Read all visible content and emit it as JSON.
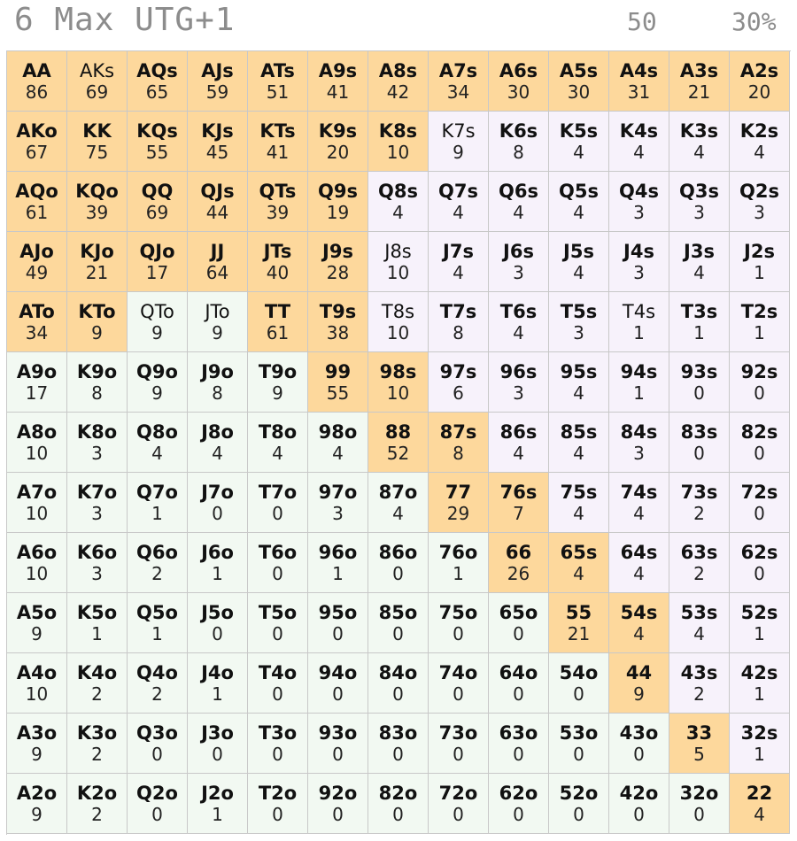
{
  "header": {
    "title": "6 Max UTG+1",
    "stat_left": "50",
    "stat_right": "30%"
  },
  "colors": {
    "open": "#fdd89c",
    "fold_suited": "#f7f2fb",
    "fold_offsuit": "#f2f9f2",
    "grid_line": "#c8c8c8"
  },
  "grid": {
    "rows": [
      [
        {
          "hand": "AA",
          "freq": "86"
        },
        {
          "hand": "AKs",
          "freq": "69"
        },
        {
          "hand": "AQs",
          "freq": "65"
        },
        {
          "hand": "AJs",
          "freq": "59"
        },
        {
          "hand": "ATs",
          "freq": "51"
        },
        {
          "hand": "A9s",
          "freq": "41"
        },
        {
          "hand": "A8s",
          "freq": "42"
        },
        {
          "hand": "A7s",
          "freq": "34"
        },
        {
          "hand": "A6s",
          "freq": "30"
        },
        {
          "hand": "A5s",
          "freq": "30"
        },
        {
          "hand": "A4s",
          "freq": "31"
        },
        {
          "hand": "A3s",
          "freq": "21"
        },
        {
          "hand": "A2s",
          "freq": "20"
        }
      ],
      [
        {
          "hand": "AKo",
          "freq": "67"
        },
        {
          "hand": "KK",
          "freq": "75"
        },
        {
          "hand": "KQs",
          "freq": "55"
        },
        {
          "hand": "KJs",
          "freq": "45"
        },
        {
          "hand": "KTs",
          "freq": "41"
        },
        {
          "hand": "K9s",
          "freq": "20"
        },
        {
          "hand": "K8s",
          "freq": "10"
        },
        {
          "hand": "K7s",
          "freq": "9"
        },
        {
          "hand": "K6s",
          "freq": "8"
        },
        {
          "hand": "K5s",
          "freq": "4"
        },
        {
          "hand": "K4s",
          "freq": "4"
        },
        {
          "hand": "K3s",
          "freq": "4"
        },
        {
          "hand": "K2s",
          "freq": "4"
        }
      ],
      [
        {
          "hand": "AQo",
          "freq": "61"
        },
        {
          "hand": "KQo",
          "freq": "39"
        },
        {
          "hand": "QQ",
          "freq": "69"
        },
        {
          "hand": "QJs",
          "freq": "44"
        },
        {
          "hand": "QTs",
          "freq": "39"
        },
        {
          "hand": "Q9s",
          "freq": "19"
        },
        {
          "hand": "Q8s",
          "freq": "4"
        },
        {
          "hand": "Q7s",
          "freq": "4"
        },
        {
          "hand": "Q6s",
          "freq": "4"
        },
        {
          "hand": "Q5s",
          "freq": "4"
        },
        {
          "hand": "Q4s",
          "freq": "3"
        },
        {
          "hand": "Q3s",
          "freq": "3"
        },
        {
          "hand": "Q2s",
          "freq": "3"
        }
      ],
      [
        {
          "hand": "AJo",
          "freq": "49"
        },
        {
          "hand": "KJo",
          "freq": "21"
        },
        {
          "hand": "QJo",
          "freq": "17"
        },
        {
          "hand": "JJ",
          "freq": "64"
        },
        {
          "hand": "JTs",
          "freq": "40"
        },
        {
          "hand": "J9s",
          "freq": "28"
        },
        {
          "hand": "J8s",
          "freq": "10"
        },
        {
          "hand": "J7s",
          "freq": "4"
        },
        {
          "hand": "J6s",
          "freq": "3"
        },
        {
          "hand": "J5s",
          "freq": "4"
        },
        {
          "hand": "J4s",
          "freq": "3"
        },
        {
          "hand": "J3s",
          "freq": "4"
        },
        {
          "hand": "J2s",
          "freq": "1"
        }
      ],
      [
        {
          "hand": "ATo",
          "freq": "34"
        },
        {
          "hand": "KTo",
          "freq": "9"
        },
        {
          "hand": "QTo",
          "freq": "9"
        },
        {
          "hand": "JTo",
          "freq": "9"
        },
        {
          "hand": "TT",
          "freq": "61"
        },
        {
          "hand": "T9s",
          "freq": "38"
        },
        {
          "hand": "T8s",
          "freq": "10"
        },
        {
          "hand": "T7s",
          "freq": "8"
        },
        {
          "hand": "T6s",
          "freq": "4"
        },
        {
          "hand": "T5s",
          "freq": "3"
        },
        {
          "hand": "T4s",
          "freq": "1"
        },
        {
          "hand": "T3s",
          "freq": "1"
        },
        {
          "hand": "T2s",
          "freq": "1"
        }
      ],
      [
        {
          "hand": "A9o",
          "freq": "17"
        },
        {
          "hand": "K9o",
          "freq": "8"
        },
        {
          "hand": "Q9o",
          "freq": "9"
        },
        {
          "hand": "J9o",
          "freq": "8"
        },
        {
          "hand": "T9o",
          "freq": "9"
        },
        {
          "hand": "99",
          "freq": "55"
        },
        {
          "hand": "98s",
          "freq": "10"
        },
        {
          "hand": "97s",
          "freq": "6"
        },
        {
          "hand": "96s",
          "freq": "3"
        },
        {
          "hand": "95s",
          "freq": "4"
        },
        {
          "hand": "94s",
          "freq": "1"
        },
        {
          "hand": "93s",
          "freq": "0"
        },
        {
          "hand": "92s",
          "freq": "0"
        }
      ],
      [
        {
          "hand": "A8o",
          "freq": "10"
        },
        {
          "hand": "K8o",
          "freq": "3"
        },
        {
          "hand": "Q8o",
          "freq": "4"
        },
        {
          "hand": "J8o",
          "freq": "4"
        },
        {
          "hand": "T8o",
          "freq": "4"
        },
        {
          "hand": "98o",
          "freq": "4"
        },
        {
          "hand": "88",
          "freq": "52"
        },
        {
          "hand": "87s",
          "freq": "8"
        },
        {
          "hand": "86s",
          "freq": "4"
        },
        {
          "hand": "85s",
          "freq": "4"
        },
        {
          "hand": "84s",
          "freq": "3"
        },
        {
          "hand": "83s",
          "freq": "0"
        },
        {
          "hand": "82s",
          "freq": "0"
        }
      ],
      [
        {
          "hand": "A7o",
          "freq": "10"
        },
        {
          "hand": "K7o",
          "freq": "3"
        },
        {
          "hand": "Q7o",
          "freq": "1"
        },
        {
          "hand": "J7o",
          "freq": "0"
        },
        {
          "hand": "T7o",
          "freq": "0"
        },
        {
          "hand": "97o",
          "freq": "3"
        },
        {
          "hand": "87o",
          "freq": "4"
        },
        {
          "hand": "77",
          "freq": "29"
        },
        {
          "hand": "76s",
          "freq": "7"
        },
        {
          "hand": "75s",
          "freq": "4"
        },
        {
          "hand": "74s",
          "freq": "4"
        },
        {
          "hand": "73s",
          "freq": "2"
        },
        {
          "hand": "72s",
          "freq": "0"
        }
      ],
      [
        {
          "hand": "A6o",
          "freq": "10"
        },
        {
          "hand": "K6o",
          "freq": "3"
        },
        {
          "hand": "Q6o",
          "freq": "2"
        },
        {
          "hand": "J6o",
          "freq": "1"
        },
        {
          "hand": "T6o",
          "freq": "0"
        },
        {
          "hand": "96o",
          "freq": "1"
        },
        {
          "hand": "86o",
          "freq": "0"
        },
        {
          "hand": "76o",
          "freq": "1"
        },
        {
          "hand": "66",
          "freq": "26"
        },
        {
          "hand": "65s",
          "freq": "4"
        },
        {
          "hand": "64s",
          "freq": "4"
        },
        {
          "hand": "63s",
          "freq": "2"
        },
        {
          "hand": "62s",
          "freq": "0"
        }
      ],
      [
        {
          "hand": "A5o",
          "freq": "9"
        },
        {
          "hand": "K5o",
          "freq": "1"
        },
        {
          "hand": "Q5o",
          "freq": "1"
        },
        {
          "hand": "J5o",
          "freq": "0"
        },
        {
          "hand": "T5o",
          "freq": "0"
        },
        {
          "hand": "95o",
          "freq": "0"
        },
        {
          "hand": "85o",
          "freq": "0"
        },
        {
          "hand": "75o",
          "freq": "0"
        },
        {
          "hand": "65o",
          "freq": "0"
        },
        {
          "hand": "55",
          "freq": "21"
        },
        {
          "hand": "54s",
          "freq": "4"
        },
        {
          "hand": "53s",
          "freq": "4"
        },
        {
          "hand": "52s",
          "freq": "1"
        }
      ],
      [
        {
          "hand": "A4o",
          "freq": "10"
        },
        {
          "hand": "K4o",
          "freq": "2"
        },
        {
          "hand": "Q4o",
          "freq": "2"
        },
        {
          "hand": "J4o",
          "freq": "1"
        },
        {
          "hand": "T4o",
          "freq": "0"
        },
        {
          "hand": "94o",
          "freq": "0"
        },
        {
          "hand": "84o",
          "freq": "0"
        },
        {
          "hand": "74o",
          "freq": "0"
        },
        {
          "hand": "64o",
          "freq": "0"
        },
        {
          "hand": "54o",
          "freq": "0"
        },
        {
          "hand": "44",
          "freq": "9"
        },
        {
          "hand": "43s",
          "freq": "2"
        },
        {
          "hand": "42s",
          "freq": "1"
        }
      ],
      [
        {
          "hand": "A3o",
          "freq": "9"
        },
        {
          "hand": "K3o",
          "freq": "2"
        },
        {
          "hand": "Q3o",
          "freq": "0"
        },
        {
          "hand": "J3o",
          "freq": "0"
        },
        {
          "hand": "T3o",
          "freq": "0"
        },
        {
          "hand": "93o",
          "freq": "0"
        },
        {
          "hand": "83o",
          "freq": "0"
        },
        {
          "hand": "73o",
          "freq": "0"
        },
        {
          "hand": "63o",
          "freq": "0"
        },
        {
          "hand": "53o",
          "freq": "0"
        },
        {
          "hand": "43o",
          "freq": "0"
        },
        {
          "hand": "33",
          "freq": "5"
        },
        {
          "hand": "32s",
          "freq": "1"
        }
      ],
      [
        {
          "hand": "A2o",
          "freq": "9"
        },
        {
          "hand": "K2o",
          "freq": "2"
        },
        {
          "hand": "Q2o",
          "freq": "0"
        },
        {
          "hand": "J2o",
          "freq": "1"
        },
        {
          "hand": "T2o",
          "freq": "0"
        },
        {
          "hand": "92o",
          "freq": "0"
        },
        {
          "hand": "82o",
          "freq": "0"
        },
        {
          "hand": "72o",
          "freq": "0"
        },
        {
          "hand": "62o",
          "freq": "0"
        },
        {
          "hand": "52o",
          "freq": "0"
        },
        {
          "hand": "42o",
          "freq": "0"
        },
        {
          "hand": "32o",
          "freq": "0"
        },
        {
          "hand": "22",
          "freq": "4"
        }
      ]
    ],
    "open_hands": [
      "AA",
      "AKs",
      "AQs",
      "AJs",
      "ATs",
      "A9s",
      "A8s",
      "A7s",
      "A6s",
      "A5s",
      "A4s",
      "A3s",
      "A2s",
      "AKo",
      "KK",
      "KQs",
      "KJs",
      "KTs",
      "K9s",
      "K8s",
      "AQo",
      "KQo",
      "QQ",
      "QJs",
      "QTs",
      "Q9s",
      "AJo",
      "KJo",
      "QJo",
      "JJ",
      "JTs",
      "J9s",
      "ATo",
      "KTo",
      "TT",
      "T9s",
      "99",
      "98s",
      "88",
      "87s",
      "77",
      "76s",
      "66",
      "65s",
      "55",
      "54s",
      "44",
      "33",
      "22"
    ],
    "light_hands": [
      "AKs",
      "K7s",
      "J8s",
      "QTo",
      "JTo",
      "T8s",
      "T4s"
    ]
  }
}
